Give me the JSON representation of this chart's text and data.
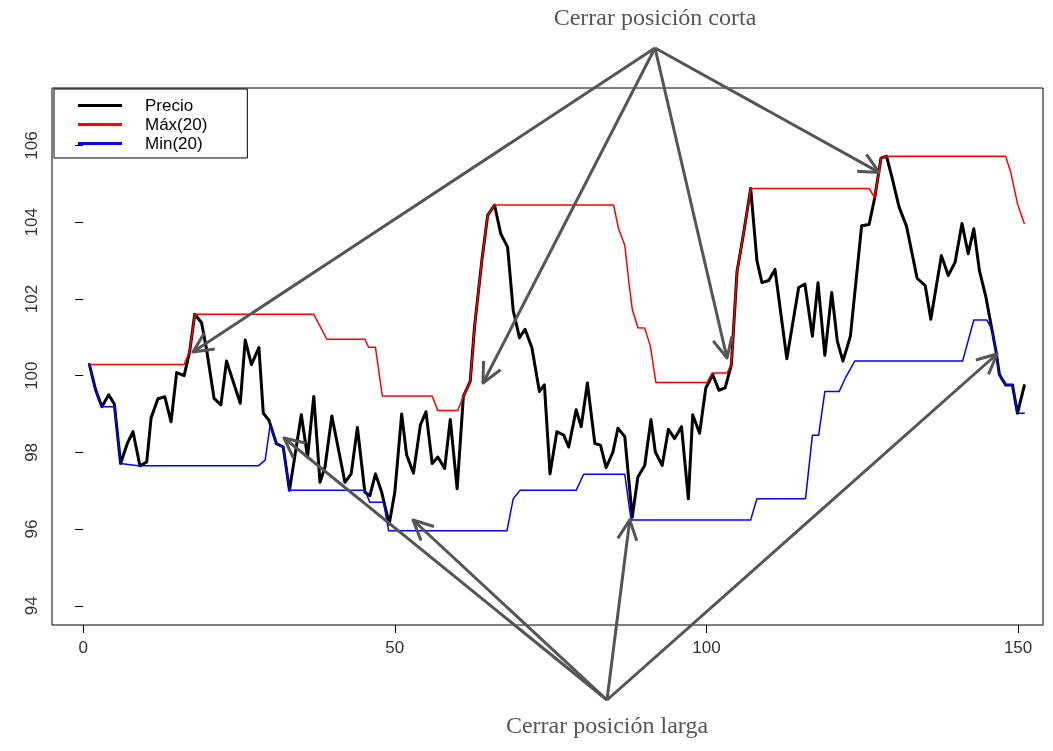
{
  "chart_data": {
    "type": "line",
    "annotations": [
      {
        "text": "Cerrar posición corta",
        "x": 127.7,
        "y": 105.3
      },
      {
        "text": "Cerrar posición larga",
        "x": 87.7,
        "y": 96.24
      }
    ],
    "xlim": [
      -5,
      154
    ],
    "xticks": [
      0,
      50,
      100,
      150
    ],
    "ylim": [
      93.5,
      107.5
    ],
    "yticks": [
      94,
      96,
      98,
      100,
      102,
      104,
      106
    ],
    "grid": false,
    "legend": "top left",
    "marker": "none",
    "line_style": "solid",
    "series": [
      {
        "name": "Precio",
        "color": "#000000",
        "x": [
          1,
          2,
          3,
          4.1,
          5,
          6,
          7.1,
          8,
          9.1,
          10.2,
          10.9,
          12,
          13.1,
          14.1,
          15,
          16.2,
          17.1,
          17.9,
          19,
          19.8,
          21,
          22.1,
          23,
          25.2,
          26,
          27,
          28.2,
          28.9,
          29.8,
          31,
          32.1,
          33.1,
          35,
          36,
          37,
          38,
          38.8,
          39.9,
          42,
          43,
          44,
          45.2,
          46,
          46.9,
          47.9,
          49.1,
          50,
          51.1,
          51.9,
          53,
          54.1,
          55,
          56,
          56.9,
          58,
          58.9,
          60,
          61,
          62.1,
          62.8,
          64,
          64.9,
          66,
          67,
          68.1,
          69,
          70,
          70.9,
          72,
          73.2,
          74,
          74.9,
          76,
          77.1,
          77.9,
          79.1,
          79.9,
          80.9,
          82.1,
          83,
          83.9,
          85,
          85.8,
          86.9,
          88.1,
          89,
          90.1,
          91.1,
          91.8,
          92.9,
          93.9,
          94.9,
          96,
          97.1,
          97.8,
          98.9,
          99.9,
          101,
          102,
          103,
          104,
          104.9,
          106,
          107.1,
          108.1,
          108.9,
          110,
          111,
          112.9,
          114.8,
          115.8,
          117,
          117.9,
          119,
          120.1,
          121,
          121.9,
          123.1,
          124.9,
          126.1,
          127,
          128,
          128.9,
          129.8,
          130.9,
          132.1,
          133.8,
          135.1,
          136,
          137.7,
          138.8,
          139.9,
          141,
          142,
          142.9,
          143.8,
          144.8,
          145.8,
          146.5,
          147,
          148,
          149.1,
          149.9,
          151
        ],
        "values": [
          100.29,
          99.63,
          99.19,
          99.5,
          99.26,
          97.71,
          98.24,
          98.54,
          97.65,
          97.75,
          98.9,
          99.4,
          99.45,
          98.8,
          100.08,
          100.0,
          100.64,
          101.6,
          101.38,
          100.68,
          99.41,
          99.24,
          100.38,
          99.28,
          100.93,
          100.29,
          100.73,
          99.02,
          98.84,
          98.23,
          98.14,
          97.01,
          98.98,
          97.88,
          99.46,
          97.22,
          97.62,
          98.95,
          97.22,
          97.44,
          98.65,
          96.96,
          96.87,
          97.44,
          96.96,
          96.13,
          96.96,
          99.0,
          97.93,
          97.46,
          98.71,
          99.06,
          97.71,
          97.88,
          97.58,
          98.86,
          97.05,
          99.46,
          99.85,
          101.29,
          103.05,
          104.18,
          104.45,
          103.7,
          103.35,
          101.7,
          100.99,
          101.21,
          100.73,
          99.59,
          99.76,
          97.44,
          98.54,
          98.45,
          98.14,
          99.11,
          98.67,
          99.81,
          98.23,
          98.19,
          97.6,
          98.01,
          98.63,
          98.41,
          96.31,
          97.36,
          97.66,
          98.86,
          98.01,
          97.66,
          98.6,
          98.36,
          98.67,
          96.79,
          98.98,
          98.5,
          99.68,
          100.03,
          99.62,
          99.68,
          100.29,
          102.7,
          103.75,
          104.88,
          103.0,
          102.43,
          102.48,
          102.77,
          100.44,
          102.3,
          102.39,
          101.03,
          102.42,
          100.53,
          102.17,
          100.9,
          100.38,
          101.03,
          103.91,
          103.94,
          104.64,
          105.67,
          105.72,
          105.15,
          104.4,
          103.9,
          102.54,
          102.35,
          101.47,
          103.13,
          102.61,
          102.96,
          103.97,
          103.18,
          103.83,
          102.74,
          102.08,
          101.21,
          100.6,
          100.03,
          99.76,
          99.76,
          99.02,
          99.74
        ]
      },
      {
        "name": "Máx(20)",
        "color": "#ff0000",
        "x": [
          1,
          16.2,
          17.1,
          17.9,
          37,
          39.1,
          45.2,
          45.8,
          46.9,
          48,
          56,
          56.9,
          60.1,
          61,
          62.1,
          62.8,
          64,
          64.9,
          66,
          85.1,
          85.9,
          86.9,
          87.5,
          88.1,
          89,
          90.1,
          91,
          91.9,
          100.1,
          100.9,
          103.3,
          104,
          104.9,
          106,
          107.1,
          126.1,
          127,
          128,
          128.9,
          148,
          148.8,
          149.9,
          151
        ],
        "values": [
          100.29,
          100.29,
          100.64,
          101.6,
          101.6,
          100.95,
          100.95,
          100.74,
          100.74,
          99.47,
          99.47,
          99.09,
          99.09,
          99.46,
          99.85,
          101.29,
          103.05,
          104.18,
          104.45,
          104.45,
          103.83,
          103.4,
          102.52,
          101.73,
          101.25,
          101.24,
          100.77,
          99.82,
          99.82,
          100.07,
          100.07,
          100.29,
          102.7,
          103.75,
          104.88,
          104.88,
          104.64,
          105.67,
          105.72,
          105.72,
          105.32,
          104.49,
          103.97
        ]
      },
      {
        "name": "Min(20)",
        "color": "#0000ff",
        "x": [
          1,
          2,
          3,
          5,
          6,
          8.8,
          28.1,
          29.2,
          30,
          31,
          32.1,
          33.1,
          45.2,
          46,
          48.2,
          49,
          68,
          69,
          70.1,
          79.1,
          80.3,
          86.9,
          87.9,
          107.1,
          108.1,
          115.9,
          117,
          118,
          119,
          121.3,
          122.3,
          123.8,
          141.1,
          142.9,
          145,
          145.8,
          146.5,
          147,
          148,
          149.1,
          149.9,
          151
        ],
        "values": [
          100.29,
          99.63,
          99.19,
          99.19,
          97.71,
          97.65,
          97.65,
          97.8,
          98.71,
          98.23,
          98.14,
          97.01,
          97.01,
          96.7,
          96.7,
          95.96,
          95.96,
          96.79,
          97.01,
          97.01,
          97.43,
          97.43,
          96.24,
          96.24,
          96.79,
          96.79,
          98.45,
          98.45,
          99.59,
          99.59,
          99.94,
          100.38,
          100.38,
          101.45,
          101.45,
          101.21,
          100.6,
          100.03,
          99.76,
          99.76,
          99.02,
          99.02
        ]
      }
    ]
  }
}
